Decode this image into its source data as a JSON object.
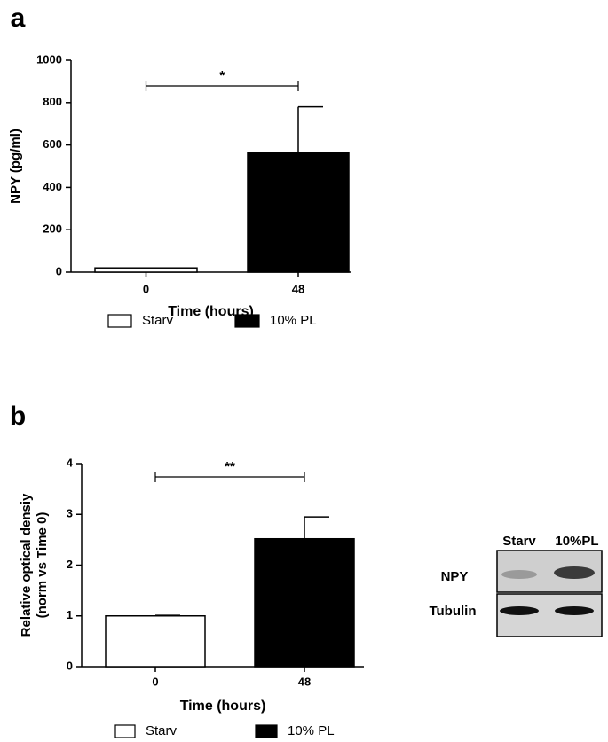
{
  "chart_data": [
    {
      "type": "bar",
      "panel": "a",
      "ylabel": [
        "NPY (pg/ml)"
      ],
      "xlabel": "Time (hours)",
      "categories": [
        "0",
        "48"
      ],
      "values": [
        20,
        563
      ],
      "errors": [
        null,
        217
      ],
      "colors": [
        "#ffffff",
        "#000000"
      ],
      "ylim": [
        0,
        1000
      ],
      "yticks": [
        0,
        200,
        400,
        600,
        800,
        1000
      ],
      "significance": "*",
      "legend": [
        {
          "name": "Starv",
          "color": "#ffffff"
        },
        {
          "name": "10% PL",
          "color": "#000000"
        }
      ]
    },
    {
      "type": "bar",
      "panel": "b",
      "ylabel": [
        "Relative optical densiy",
        "(norm vs Time 0)"
      ],
      "xlabel": "Time (hours)",
      "categories": [
        "0",
        "48"
      ],
      "values": [
        1.0,
        2.52
      ],
      "errors": [
        0.01,
        0.43
      ],
      "colors": [
        "#ffffff",
        "#000000"
      ],
      "ylim": [
        0,
        4
      ],
      "yticks": [
        0,
        1,
        2,
        3,
        4
      ],
      "significance": "**",
      "legend": [
        {
          "name": "Starv",
          "color": "#ffffff"
        },
        {
          "name": "10% PL",
          "color": "#000000"
        }
      ]
    }
  ],
  "blot": {
    "lanes": [
      "Starv",
      "10%PL"
    ],
    "rows": [
      "NPY",
      "Tubulin"
    ]
  }
}
